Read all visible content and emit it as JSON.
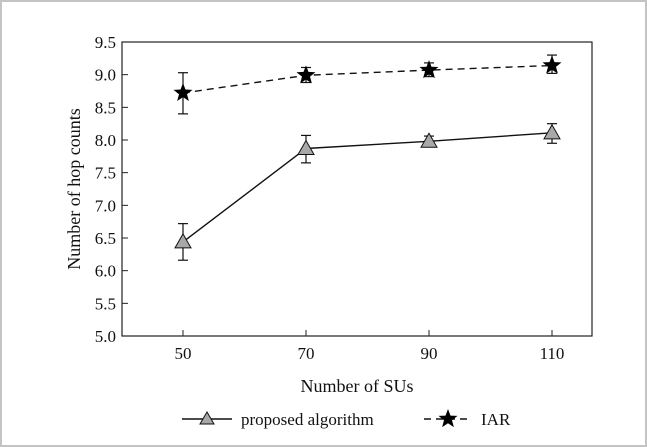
{
  "chart_data": {
    "type": "line",
    "title": "",
    "xlabel": "Number of SUs",
    "ylabel": "Number of  hop counts",
    "categories": [
      "50",
      "70",
      "90",
      "110"
    ],
    "x": [
      50,
      70,
      90,
      110
    ],
    "ylim": [
      5.0,
      9.5
    ],
    "yticks": [
      "5.0",
      "5.5",
      "6.0",
      "6.5",
      "7.0",
      "7.5",
      "8.0",
      "8.5",
      "9.0",
      "9.5"
    ],
    "grid": false,
    "legend_position": "bottom",
    "series": [
      {
        "name": "proposed algorithm",
        "values": [
          6.44,
          7.87,
          7.98,
          8.11
        ],
        "error_low": [
          6.16,
          7.65,
          7.9,
          7.95
        ],
        "error_high": [
          6.72,
          8.07,
          8.06,
          8.25
        ],
        "line_style": "solid",
        "marker": "triangle",
        "marker_color": "#a8a8a8"
      },
      {
        "name": "IAR",
        "values": [
          8.72,
          8.99,
          9.07,
          9.14
        ],
        "error_low": [
          8.4,
          8.88,
          8.97,
          9.02
        ],
        "error_high": [
          9.03,
          9.11,
          9.18,
          9.3
        ],
        "line_style": "dashed",
        "marker": "star",
        "marker_color": "#000000"
      }
    ]
  }
}
